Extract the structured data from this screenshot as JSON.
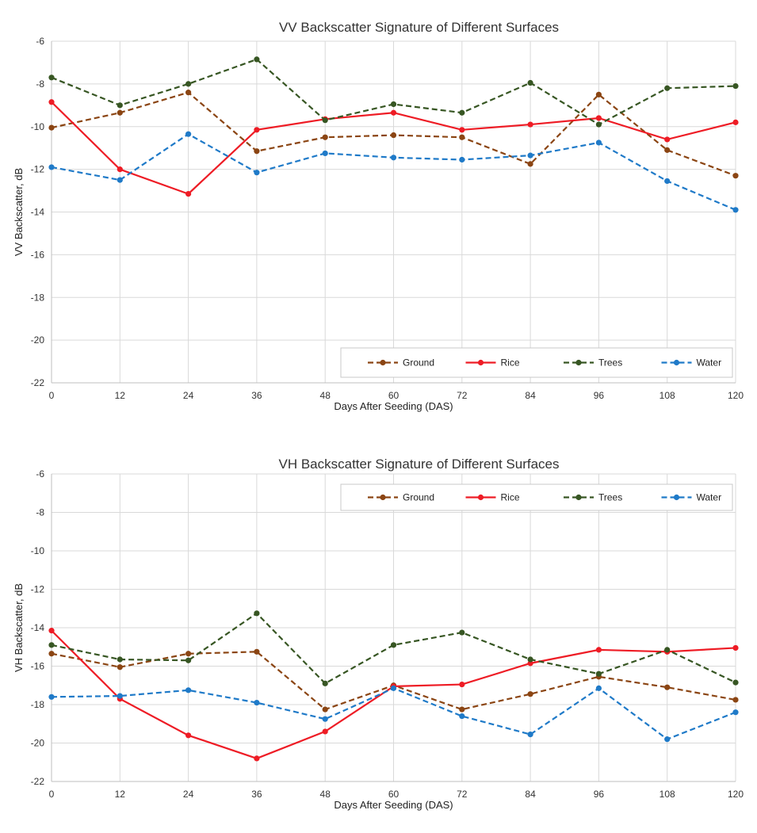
{
  "chart_data": [
    {
      "type": "line",
      "title": "VV Backscatter Signature of Different Surfaces",
      "xlabel": "Days After Seeding (DAS)",
      "ylabel": "VV Backscatter, dB",
      "x": [
        0,
        12,
        24,
        36,
        48,
        60,
        72,
        84,
        96,
        108,
        120
      ],
      "xlim": [
        0,
        120
      ],
      "ylim": [
        -22,
        -6
      ],
      "y_ticks": [
        -6,
        -8,
        -10,
        -12,
        -14,
        -16,
        -18,
        -20,
        -22
      ],
      "grid": true,
      "legend_position": "bottom-right",
      "series": [
        {
          "name": "Ground",
          "color": "#8b4513",
          "dashed": true,
          "values": [
            -10.05,
            -9.35,
            -8.4,
            -11.15,
            -10.5,
            -10.4,
            -10.5,
            -11.75,
            -8.5,
            -11.1,
            -12.3
          ]
        },
        {
          "name": "Rice",
          "color": "#ee1c25",
          "dashed": false,
          "values": [
            -8.85,
            -12.0,
            -13.15,
            -10.15,
            -9.65,
            -9.35,
            -10.15,
            -9.9,
            -9.6,
            -10.6,
            -9.8
          ]
        },
        {
          "name": "Trees",
          "color": "#375623",
          "dashed": true,
          "values": [
            -7.7,
            -9.0,
            -8.0,
            -6.85,
            -9.7,
            -8.95,
            -9.35,
            -7.95,
            -9.9,
            -8.2,
            -8.1
          ]
        },
        {
          "name": "Water",
          "color": "#1f7ac8",
          "dashed": true,
          "values": [
            -11.9,
            -12.5,
            -10.35,
            -12.15,
            -11.25,
            -11.45,
            -11.55,
            -11.35,
            -10.75,
            -12.55,
            -13.9
          ]
        }
      ]
    },
    {
      "type": "line",
      "title": "VH Backscatter Signature of Different Surfaces",
      "xlabel": "Days After Seeding (DAS)",
      "ylabel": "VH Backscatter, dB",
      "x": [
        0,
        12,
        24,
        36,
        48,
        60,
        72,
        84,
        96,
        108,
        120
      ],
      "xlim": [
        0,
        120
      ],
      "ylim": [
        -22,
        -6
      ],
      "y_ticks": [
        -6,
        -8,
        -10,
        -12,
        -14,
        -16,
        -18,
        -20,
        -22
      ],
      "grid": true,
      "legend_position": "top-right",
      "series": [
        {
          "name": "Ground",
          "color": "#8b4513",
          "dashed": true,
          "values": [
            -15.35,
            -16.05,
            -15.35,
            -15.25,
            -18.25,
            -17.0,
            -18.25,
            -17.45,
            -16.55,
            -17.1,
            -17.75
          ]
        },
        {
          "name": "Rice",
          "color": "#ee1c25",
          "dashed": false,
          "values": [
            -14.15,
            -17.7,
            -19.6,
            -20.8,
            -19.4,
            -17.05,
            -16.95,
            -15.85,
            -15.15,
            -15.25,
            -15.05
          ]
        },
        {
          "name": "Trees",
          "color": "#375623",
          "dashed": true,
          "values": [
            -14.9,
            -15.65,
            -15.7,
            -13.25,
            -16.9,
            -14.9,
            -14.25,
            -15.65,
            -16.4,
            -15.15,
            -16.85
          ]
        },
        {
          "name": "Water",
          "color": "#1f7ac8",
          "dashed": true,
          "values": [
            -17.6,
            -17.55,
            -17.25,
            -17.9,
            -18.75,
            -17.15,
            -18.6,
            -19.55,
            -17.15,
            -19.8,
            -18.4
          ]
        }
      ]
    }
  ]
}
